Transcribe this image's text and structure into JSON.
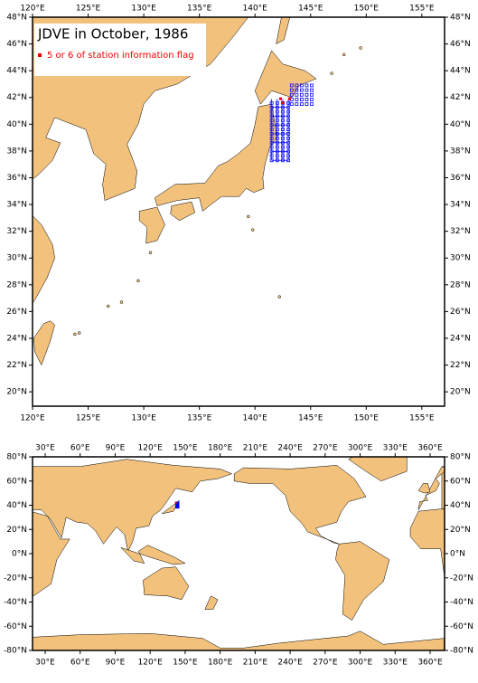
{
  "top_map": {
    "title": "JDVE in October, 1986",
    "legend": "5 or 6 of station information flag",
    "lon_ticks": [
      {
        "value": 120,
        "label": "120°E"
      },
      {
        "value": 125,
        "label": "125°E"
      },
      {
        "value": 130,
        "label": "130°E"
      },
      {
        "value": 135,
        "label": "135°E"
      },
      {
        "value": 140,
        "label": "140°E"
      },
      {
        "value": 145,
        "label": "145°E"
      },
      {
        "value": 150,
        "label": "150°E"
      },
      {
        "value": 155,
        "label": "155°E"
      }
    ],
    "lat_ticks": [
      {
        "value": 20,
        "label": "20°N"
      },
      {
        "value": 22,
        "label": "22°N"
      },
      {
        "value": 24,
        "label": "24°N"
      },
      {
        "value": 26,
        "label": "26°N"
      },
      {
        "value": 28,
        "label": "28°N"
      },
      {
        "value": 30,
        "label": "30°N"
      },
      {
        "value": 32,
        "label": "32°N"
      },
      {
        "value": 34,
        "label": "34°N"
      },
      {
        "value": 36,
        "label": "36°N"
      },
      {
        "value": 38,
        "label": "38°N"
      },
      {
        "value": 40,
        "label": "40°N"
      },
      {
        "value": 42,
        "label": "42°N"
      },
      {
        "value": 44,
        "label": "44°N"
      },
      {
        "value": 46,
        "label": "46°N"
      },
      {
        "value": 48,
        "label": "48°N"
      }
    ]
  },
  "bottom_map": {
    "lon_ticks": [
      {
        "value": 30,
        "label": "30°E"
      },
      {
        "value": 60,
        "label": "60°E"
      },
      {
        "value": 90,
        "label": "90°E"
      },
      {
        "value": 120,
        "label": "120°E"
      },
      {
        "value": 150,
        "label": "150°E"
      },
      {
        "value": 180,
        "label": "180°E"
      },
      {
        "value": 210,
        "label": "210°E"
      },
      {
        "value": 240,
        "label": "240°E"
      },
      {
        "value": 270,
        "label": "270°E"
      },
      {
        "value": 300,
        "label": "300°E"
      },
      {
        "value": 330,
        "label": "330°E"
      },
      {
        "value": 360,
        "label": "360°E"
      }
    ],
    "lat_ticks": [
      {
        "value": 80,
        "label": "80°N"
      },
      {
        "value": 60,
        "label": "60°N"
      },
      {
        "value": 40,
        "label": "40°N"
      },
      {
        "value": 20,
        "label": "20°N"
      },
      {
        "value": 0,
        "label": "0°N"
      },
      {
        "value": -20,
        "label": "-20°N"
      },
      {
        "value": -40,
        "label": "-40°N"
      },
      {
        "value": -60,
        "label": "-60°N"
      },
      {
        "value": -80,
        "label": "-80°N"
      }
    ]
  }
}
